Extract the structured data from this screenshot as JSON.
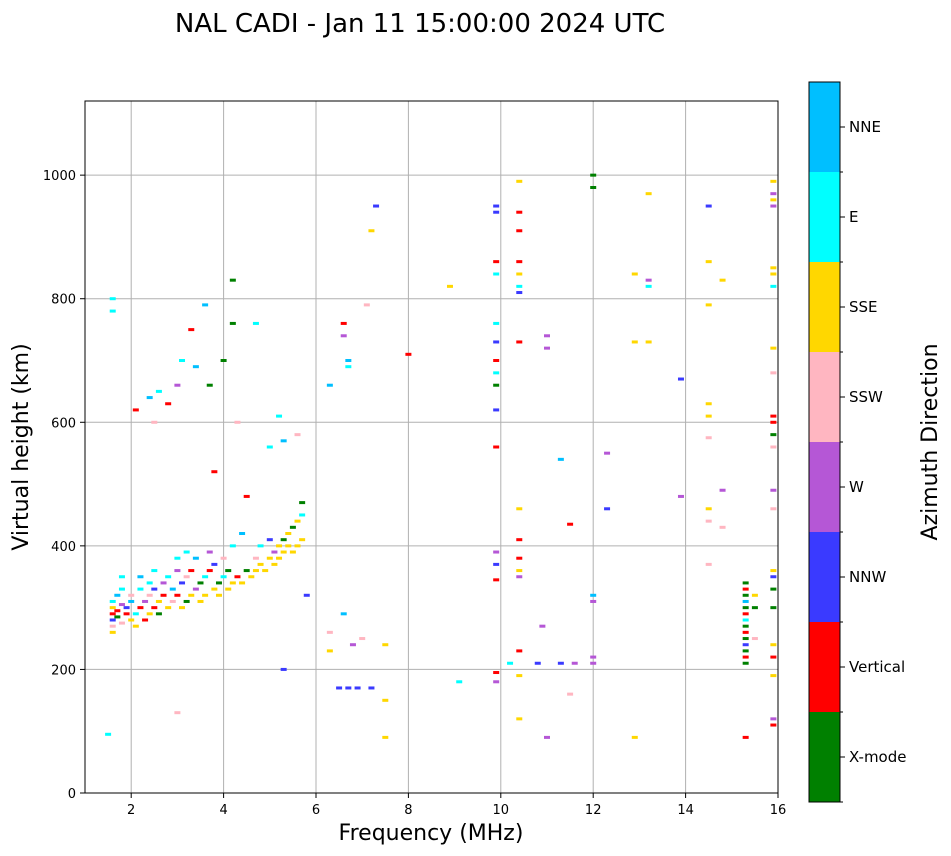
{
  "chart_data": {
    "type": "scatter",
    "title": "NAL CADI - Jan 11 15:00:00 2024 UTC",
    "xlabel": "Frequency (MHz)",
    "ylabel": "Virtual height (km)",
    "xlim": [
      1,
      16
    ],
    "ylim": [
      0,
      1120
    ],
    "xticks": [
      2,
      4,
      6,
      8,
      10,
      12,
      14,
      16
    ],
    "yticks": [
      0,
      200,
      400,
      600,
      800,
      1000
    ],
    "grid": true,
    "colorbar": {
      "label": "Azimuth Direction",
      "categories": [
        {
          "name": "X-mode",
          "color": "#008000"
        },
        {
          "name": "Vertical",
          "color": "#ff0000"
        },
        {
          "name": "NNW",
          "color": "#3a3aff"
        },
        {
          "name": "W",
          "color": "#b557d6"
        },
        {
          "name": "SSW",
          "color": "#ffb6c1"
        },
        {
          "name": "SSE",
          "color": "#ffd700"
        },
        {
          "name": "E",
          "color": "#00ffff"
        },
        {
          "name": "NNE",
          "color": "#00bfff"
        }
      ]
    },
    "points": [
      [
        1.6,
        290,
        "Vertical"
      ],
      [
        1.6,
        280,
        "NNW"
      ],
      [
        1.6,
        300,
        "SSE"
      ],
      [
        1.6,
        310,
        "E"
      ],
      [
        1.6,
        270,
        "SSW"
      ],
      [
        1.6,
        260,
        "SSE"
      ],
      [
        1.7,
        320,
        "NNE"
      ],
      [
        1.7,
        295,
        "Vertical"
      ],
      [
        1.7,
        285,
        "X-mode"
      ],
      [
        1.8,
        305,
        "W"
      ],
      [
        1.8,
        330,
        "E"
      ],
      [
        1.8,
        350,
        "E"
      ],
      [
        1.8,
        275,
        "SSW"
      ],
      [
        1.9,
        300,
        "NNW"
      ],
      [
        1.9,
        290,
        "Vertical"
      ],
      [
        2.0,
        280,
        "SSE"
      ],
      [
        2.0,
        310,
        "NNE"
      ],
      [
        2.0,
        320,
        "SSW"
      ],
      [
        2.1,
        290,
        "E"
      ],
      [
        2.1,
        270,
        "SSE"
      ],
      [
        2.2,
        300,
        "Vertical"
      ],
      [
        2.2,
        330,
        "E"
      ],
      [
        2.2,
        350,
        "NNE"
      ],
      [
        2.3,
        280,
        "Vertical"
      ],
      [
        2.3,
        310,
        "W"
      ],
      [
        2.4,
        320,
        "SSW"
      ],
      [
        2.4,
        340,
        "E"
      ],
      [
        2.4,
        290,
        "SSE"
      ],
      [
        2.5,
        300,
        "Vertical"
      ],
      [
        2.5,
        330,
        "NNW"
      ],
      [
        2.5,
        360,
        "E"
      ],
      [
        2.6,
        310,
        "SSE"
      ],
      [
        2.6,
        290,
        "X-mode"
      ],
      [
        2.7,
        320,
        "Vertical"
      ],
      [
        2.7,
        340,
        "W"
      ],
      [
        2.8,
        300,
        "SSE"
      ],
      [
        2.8,
        350,
        "E"
      ],
      [
        2.9,
        310,
        "SSW"
      ],
      [
        2.9,
        330,
        "NNE"
      ],
      [
        3.0,
        320,
        "Vertical"
      ],
      [
        3.0,
        360,
        "W"
      ],
      [
        3.0,
        380,
        "E"
      ],
      [
        3.1,
        300,
        "SSE"
      ],
      [
        3.1,
        340,
        "NNW"
      ],
      [
        3.2,
        310,
        "X-mode"
      ],
      [
        3.2,
        350,
        "SSW"
      ],
      [
        3.2,
        390,
        "E"
      ],
      [
        3.3,
        320,
        "SSE"
      ],
      [
        3.3,
        360,
        "Vertical"
      ],
      [
        3.4,
        330,
        "W"
      ],
      [
        3.4,
        380,
        "NNE"
      ],
      [
        3.5,
        310,
        "SSE"
      ],
      [
        3.5,
        340,
        "X-mode"
      ],
      [
        3.6,
        350,
        "E"
      ],
      [
        3.6,
        320,
        "SSE"
      ],
      [
        3.7,
        360,
        "Vertical"
      ],
      [
        3.7,
        390,
        "W"
      ],
      [
        3.8,
        330,
        "SSE"
      ],
      [
        3.8,
        370,
        "NNW"
      ],
      [
        3.9,
        340,
        "X-mode"
      ],
      [
        3.9,
        320,
        "SSE"
      ],
      [
        4.0,
        350,
        "E"
      ],
      [
        4.0,
        380,
        "SSW"
      ],
      [
        4.1,
        330,
        "SSE"
      ],
      [
        4.1,
        360,
        "X-mode"
      ],
      [
        4.2,
        340,
        "SSE"
      ],
      [
        4.2,
        400,
        "E"
      ],
      [
        4.3,
        350,
        "Vertical"
      ],
      [
        4.4,
        340,
        "SSE"
      ],
      [
        4.4,
        420,
        "NNE"
      ],
      [
        4.5,
        360,
        "X-mode"
      ],
      [
        4.6,
        350,
        "SSE"
      ],
      [
        4.7,
        360,
        "SSE"
      ],
      [
        4.7,
        380,
        "SSW"
      ],
      [
        4.8,
        370,
        "SSE"
      ],
      [
        4.8,
        400,
        "E"
      ],
      [
        4.9,
        360,
        "SSE"
      ],
      [
        5.0,
        380,
        "SSE"
      ],
      [
        5.0,
        410,
        "NNW"
      ],
      [
        5.1,
        370,
        "SSE"
      ],
      [
        5.1,
        390,
        "W"
      ],
      [
        5.2,
        380,
        "SSE"
      ],
      [
        5.2,
        400,
        "SSE"
      ],
      [
        5.3,
        390,
        "SSE"
      ],
      [
        5.3,
        410,
        "X-mode"
      ],
      [
        5.4,
        400,
        "SSE"
      ],
      [
        5.4,
        420,
        "SSE"
      ],
      [
        5.5,
        390,
        "SSE"
      ],
      [
        5.5,
        430,
        "X-mode"
      ],
      [
        5.6,
        400,
        "SSE"
      ],
      [
        5.6,
        440,
        "SSE"
      ],
      [
        5.7,
        410,
        "SSE"
      ],
      [
        5.7,
        450,
        "E"
      ],
      [
        5.8,
        320,
        "NNW"
      ],
      [
        2.1,
        620,
        "Vertical"
      ],
      [
        2.4,
        640,
        "NNE"
      ],
      [
        2.5,
        600,
        "SSW"
      ],
      [
        2.6,
        650,
        "E"
      ],
      [
        2.8,
        630,
        "Vertical"
      ],
      [
        3.0,
        660,
        "W"
      ],
      [
        3.1,
        700,
        "E"
      ],
      [
        3.3,
        750,
        "Vertical"
      ],
      [
        3.4,
        690,
        "NNE"
      ],
      [
        3.6,
        790,
        "NNE"
      ],
      [
        3.7,
        660,
        "X-mode"
      ],
      [
        3.8,
        520,
        "Vertical"
      ],
      [
        4.0,
        700,
        "X-mode"
      ],
      [
        4.2,
        760,
        "X-mode"
      ],
      [
        4.2,
        830,
        "X-mode"
      ],
      [
        4.3,
        600,
        "SSW"
      ],
      [
        4.5,
        480,
        "Vertical"
      ],
      [
        4.7,
        760,
        "E"
      ],
      [
        5.0,
        560,
        "E"
      ],
      [
        5.2,
        610,
        "E"
      ],
      [
        5.3,
        570,
        "NNE"
      ],
      [
        5.6,
        580,
        "SSW"
      ],
      [
        5.7,
        470,
        "X-mode"
      ],
      [
        1.6,
        800,
        "E"
      ],
      [
        1.6,
        780,
        "E"
      ],
      [
        1.5,
        95,
        "E"
      ],
      [
        3.0,
        130,
        "SSW"
      ],
      [
        5.3,
        200,
        "NNW"
      ],
      [
        6.3,
        660,
        "NNE"
      ],
      [
        6.3,
        260,
        "SSW"
      ],
      [
        6.3,
        230,
        "SSE"
      ],
      [
        6.6,
        760,
        "Vertical"
      ],
      [
        6.6,
        740,
        "W"
      ],
      [
        6.7,
        700,
        "NNE"
      ],
      [
        6.7,
        690,
        "E"
      ],
      [
        6.6,
        290,
        "NNE"
      ],
      [
        6.5,
        170,
        "NNW"
      ],
      [
        6.7,
        170,
        "NNW"
      ],
      [
        6.8,
        240,
        "W"
      ],
      [
        6.9,
        170,
        "NNW"
      ],
      [
        7.0,
        250,
        "SSW"
      ],
      [
        7.2,
        170,
        "NNW"
      ],
      [
        7.2,
        910,
        "SSE"
      ],
      [
        7.3,
        950,
        "NNW"
      ],
      [
        7.5,
        240,
        "SSE"
      ],
      [
        7.5,
        150,
        "SSE"
      ],
      [
        7.5,
        90,
        "SSE"
      ],
      [
        7.1,
        790,
        "SSW"
      ],
      [
        8.0,
        710,
        "Vertical"
      ],
      [
        8.9,
        820,
        "SSE"
      ],
      [
        9.1,
        180,
        "E"
      ],
      [
        9.9,
        950,
        "NNW"
      ],
      [
        9.9,
        940,
        "NNW"
      ],
      [
        9.9,
        860,
        "Vertical"
      ],
      [
        9.9,
        840,
        "E"
      ],
      [
        9.9,
        760,
        "E"
      ],
      [
        9.9,
        730,
        "NNW"
      ],
      [
        9.9,
        700,
        "Vertical"
      ],
      [
        9.9,
        680,
        "E"
      ],
      [
        9.9,
        660,
        "X-mode"
      ],
      [
        9.9,
        620,
        "NNW"
      ],
      [
        9.9,
        560,
        "Vertical"
      ],
      [
        9.9,
        390,
        "W"
      ],
      [
        9.9,
        370,
        "NNW"
      ],
      [
        9.9,
        345,
        "Vertical"
      ],
      [
        9.9,
        195,
        "Vertical"
      ],
      [
        9.9,
        180,
        "W"
      ],
      [
        10.2,
        210,
        "E"
      ],
      [
        10.4,
        990,
        "SSE"
      ],
      [
        10.4,
        940,
        "Vertical"
      ],
      [
        10.4,
        910,
        "Vertical"
      ],
      [
        10.4,
        860,
        "Vertical"
      ],
      [
        10.4,
        840,
        "SSE"
      ],
      [
        10.4,
        820,
        "E"
      ],
      [
        10.4,
        810,
        "NNW"
      ],
      [
        10.4,
        730,
        "Vertical"
      ],
      [
        10.4,
        460,
        "SSE"
      ],
      [
        10.4,
        410,
        "Vertical"
      ],
      [
        10.4,
        380,
        "Vertical"
      ],
      [
        10.4,
        360,
        "SSE"
      ],
      [
        10.4,
        350,
        "W"
      ],
      [
        10.4,
        230,
        "Vertical"
      ],
      [
        10.4,
        190,
        "SSE"
      ],
      [
        10.4,
        120,
        "SSE"
      ],
      [
        10.8,
        210,
        "NNW"
      ],
      [
        10.9,
        270,
        "W"
      ],
      [
        11.0,
        90,
        "W"
      ],
      [
        11.0,
        740,
        "W"
      ],
      [
        11.0,
        720,
        "W"
      ],
      [
        11.3,
        540,
        "NNE"
      ],
      [
        11.3,
        210,
        "NNW"
      ],
      [
        11.5,
        435,
        "Vertical"
      ],
      [
        11.5,
        160,
        "SSW"
      ],
      [
        11.6,
        210,
        "W"
      ],
      [
        12.0,
        1000,
        "X-mode"
      ],
      [
        12.0,
        980,
        "X-mode"
      ],
      [
        12.0,
        320,
        "NNE"
      ],
      [
        12.0,
        310,
        "W"
      ],
      [
        12.0,
        220,
        "W"
      ],
      [
        12.0,
        210,
        "W"
      ],
      [
        12.3,
        550,
        "W"
      ],
      [
        12.3,
        460,
        "NNW"
      ],
      [
        12.9,
        840,
        "SSE"
      ],
      [
        12.9,
        730,
        "SSE"
      ],
      [
        12.9,
        90,
        "SSE"
      ],
      [
        13.2,
        970,
        "SSE"
      ],
      [
        13.2,
        830,
        "W"
      ],
      [
        13.2,
        820,
        "E"
      ],
      [
        13.2,
        730,
        "SSE"
      ],
      [
        13.9,
        670,
        "NNW"
      ],
      [
        13.9,
        480,
        "W"
      ],
      [
        14.5,
        950,
        "NNW"
      ],
      [
        14.5,
        860,
        "SSE"
      ],
      [
        14.5,
        790,
        "SSE"
      ],
      [
        14.5,
        630,
        "SSE"
      ],
      [
        14.5,
        610,
        "SSE"
      ],
      [
        14.5,
        575,
        "SSW"
      ],
      [
        14.5,
        460,
        "SSE"
      ],
      [
        14.5,
        440,
        "SSW"
      ],
      [
        14.5,
        370,
        "SSW"
      ],
      [
        14.8,
        830,
        "SSE"
      ],
      [
        14.8,
        490,
        "W"
      ],
      [
        14.8,
        430,
        "SSW"
      ],
      [
        15.3,
        90,
        "Vertical"
      ],
      [
        15.3,
        340,
        "X-mode"
      ],
      [
        15.3,
        330,
        "Vertical"
      ],
      [
        15.3,
        320,
        "X-mode"
      ],
      [
        15.3,
        310,
        "NNE"
      ],
      [
        15.3,
        300,
        "X-mode"
      ],
      [
        15.3,
        290,
        "Vertical"
      ],
      [
        15.3,
        280,
        "E"
      ],
      [
        15.3,
        270,
        "X-mode"
      ],
      [
        15.3,
        260,
        "Vertical"
      ],
      [
        15.3,
        250,
        "X-mode"
      ],
      [
        15.3,
        240,
        "NNW"
      ],
      [
        15.3,
        230,
        "X-mode"
      ],
      [
        15.3,
        220,
        "Vertical"
      ],
      [
        15.3,
        210,
        "X-mode"
      ],
      [
        15.5,
        320,
        "SSE"
      ],
      [
        15.5,
        300,
        "X-mode"
      ],
      [
        15.5,
        250,
        "SSW"
      ],
      [
        15.9,
        990,
        "SSE"
      ],
      [
        15.9,
        970,
        "W"
      ],
      [
        15.9,
        960,
        "SSE"
      ],
      [
        15.9,
        950,
        "W"
      ],
      [
        15.9,
        850,
        "SSE"
      ],
      [
        15.9,
        840,
        "SSE"
      ],
      [
        15.9,
        820,
        "E"
      ],
      [
        15.9,
        720,
        "SSE"
      ],
      [
        15.9,
        680,
        "SSW"
      ],
      [
        15.9,
        610,
        "Vertical"
      ],
      [
        15.9,
        600,
        "Vertical"
      ],
      [
        15.9,
        580,
        "X-mode"
      ],
      [
        15.9,
        560,
        "SSW"
      ],
      [
        15.9,
        490,
        "W"
      ],
      [
        15.9,
        460,
        "SSW"
      ],
      [
        15.9,
        360,
        "SSE"
      ],
      [
        15.9,
        350,
        "NNW"
      ],
      [
        15.9,
        330,
        "X-mode"
      ],
      [
        15.9,
        300,
        "X-mode"
      ],
      [
        15.9,
        240,
        "SSE"
      ],
      [
        15.9,
        220,
        "Vertical"
      ],
      [
        15.9,
        190,
        "SSE"
      ],
      [
        15.9,
        120,
        "W"
      ],
      [
        15.9,
        110,
        "Vertical"
      ]
    ]
  }
}
